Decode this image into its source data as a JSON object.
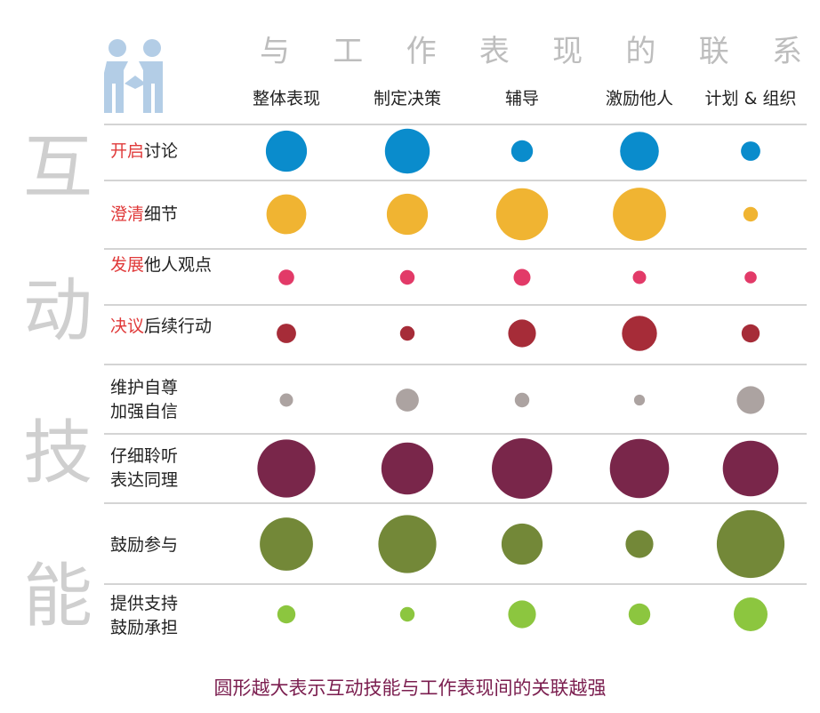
{
  "chart_data": {
    "type": "bubble_matrix",
    "vertical_title": [
      "互",
      "动",
      "技",
      "能"
    ],
    "column_group_title": [
      "与",
      "工",
      "作",
      "表",
      "现",
      "的",
      "联",
      "系"
    ],
    "columns": [
      "整体表现",
      "制定决策",
      "辅导",
      "激励他人",
      "计划 & 组织"
    ],
    "rows": [
      {
        "highlight": "开启",
        "rest": "讨论",
        "lines": [],
        "color": "#0a8ccc",
        "values": [
          3.4,
          3.7,
          1.8,
          3.2,
          1.6
        ]
      },
      {
        "highlight": "澄清",
        "rest": "细节",
        "lines": [],
        "color": "#f0b432",
        "values": [
          3.3,
          3.4,
          4.3,
          4.4,
          1.2
        ]
      },
      {
        "highlight": "发展",
        "rest": "他人观点",
        "lines": [],
        "color": "#e23a68",
        "values": [
          1.3,
          1.2,
          1.4,
          1.1,
          1.0
        ]
      },
      {
        "highlight": "决议",
        "rest": "后续行动",
        "lines": [],
        "color": "#a62c38",
        "values": [
          1.6,
          1.2,
          2.3,
          2.9,
          1.5
        ]
      },
      {
        "highlight": "",
        "rest": "",
        "lines": [
          "维护自尊",
          "加强自信"
        ],
        "color": "#aca3a1",
        "values": [
          1.1,
          1.9,
          1.2,
          0.9,
          2.3
        ]
      },
      {
        "highlight": "",
        "rest": "",
        "lines": [
          "仔细聆听",
          "表达同理"
        ],
        "color": "#79264a",
        "values": [
          4.8,
          4.3,
          5.0,
          4.9,
          4.6
        ]
      },
      {
        "highlight": "",
        "rest": "",
        "lines": [
          "鼓励参与"
        ],
        "color": "#738838",
        "values": [
          4.4,
          4.8,
          3.4,
          2.3,
          5.6
        ]
      },
      {
        "highlight": "",
        "rest": "",
        "lines": [
          "提供支持",
          "鼓励承担"
        ],
        "color": "#8cc63f",
        "values": [
          1.5,
          1.2,
          2.3,
          1.8,
          2.8
        ]
      }
    ],
    "caption": "圆形越大表示互动技能与工作表现间的关联越强"
  }
}
